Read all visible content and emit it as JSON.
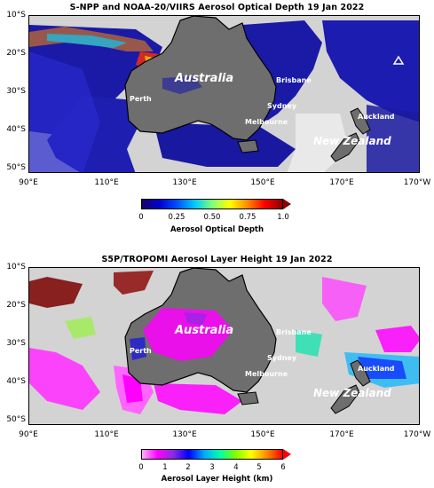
{
  "panels": [
    {
      "title": "S-NPP and NOAA-20/VIIRS Aerosol Optical Depth  19 Jan 2022",
      "colorbar": {
        "title": "Aerosol Optical Depth",
        "ticks": [
          "0",
          "0.25",
          "0.50",
          "0.75",
          "1.0"
        ],
        "colors": [
          "#1a0066",
          "#0000cc",
          "#0050ff",
          "#00c8ff",
          "#7dff7a",
          "#ffff00",
          "#ff8c00",
          "#ff0000",
          "#8b0000"
        ]
      }
    },
    {
      "title": "S5P/TROPOMI Aerosol Layer Height  19 Jan 2022",
      "colorbar": {
        "title": "Aerosol Layer Height (km)",
        "ticks": [
          "0",
          "1",
          "2",
          "3",
          "4",
          "5",
          "6"
        ],
        "colors": [
          "#ffb3ff",
          "#ff00ff",
          "#8a2be2",
          "#0000ff",
          "#00aaff",
          "#00ffaa",
          "#7fff00",
          "#ffff00",
          "#ff8c00",
          "#ff0000"
        ]
      }
    }
  ],
  "map": {
    "lat_labels": [
      "10°S",
      "20°S",
      "30°S",
      "40°S",
      "50°S"
    ],
    "lon_labels": [
      "90°E",
      "110°E",
      "130°E",
      "150°E",
      "170°E",
      "170°W"
    ],
    "labels": {
      "australia": "Australia",
      "new_zealand": "New Zealand",
      "perth": "Perth",
      "brisbane": "Brisbane",
      "sydney": "Sydney",
      "melbourne": "Melbourne",
      "auckland": "Auckland"
    },
    "colors": {
      "land": "#6e6e6e",
      "background": "#d3d3d3",
      "coast": "#000000"
    }
  }
}
